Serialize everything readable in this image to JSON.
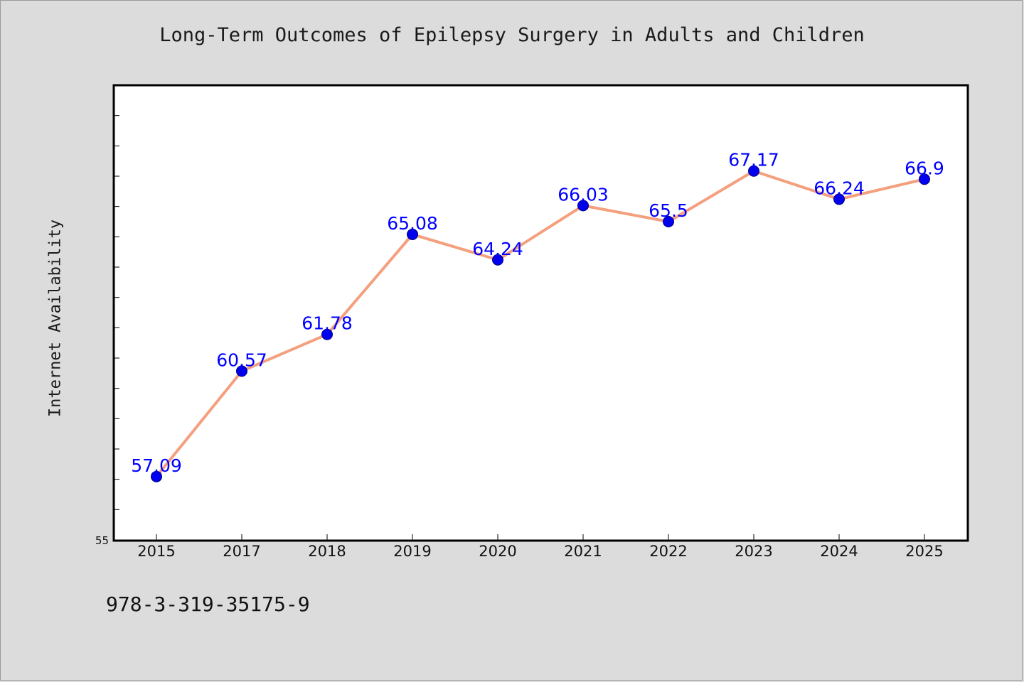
{
  "chart_data": {
    "type": "line",
    "title": "Long-Term Outcomes of Epilepsy Surgery in Adults and Children",
    "xlabel": "",
    "ylabel": "Internet Availability",
    "categories": [
      "2015",
      "2017",
      "2018",
      "2019",
      "2020",
      "2021",
      "2022",
      "2023",
      "2024",
      "2025"
    ],
    "series": [
      {
        "values": [
          57.09,
          60.57,
          61.78,
          65.08,
          64.24,
          66.03,
          65.5,
          67.17,
          66.24,
          66.9
        ],
        "data_labels": [
          "57.09",
          "60.57",
          "61.78",
          "65.08",
          "64.24",
          "66.03",
          "65.5",
          "67.17",
          "66.24",
          "66.9"
        ],
        "line_color": "#f4a07e",
        "marker_color": "#0000ee"
      }
    ],
    "ylim": [
      55,
      70
    ],
    "y_tick_label": "55",
    "grid": false,
    "legend": "none"
  },
  "footer": {
    "note": "978-3-319-35175-9"
  },
  "colors": {
    "background": "#dcdcdc",
    "plot_background": "#ffffff",
    "data_label": "#0000ff"
  }
}
